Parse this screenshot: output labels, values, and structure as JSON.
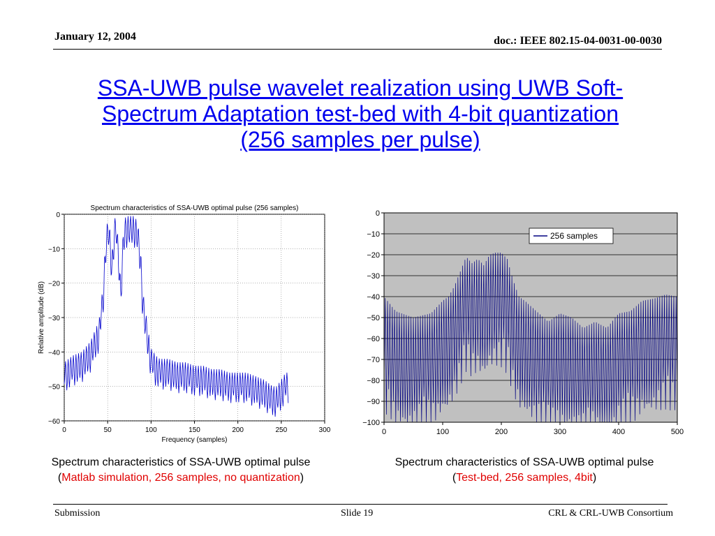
{
  "header": {
    "date": "January 12, 2004",
    "doc": "doc.: IEEE 802.15-04-0031-00-0030"
  },
  "slide": {
    "title_line1": "SSA-UWB pulse wavelet realization using UWB Soft-",
    "title_line2": "Spectrum Adaptation test-bed with 4-bit quantization",
    "title_line3": "(256 samples per pulse)",
    "title_color": "#0000ee"
  },
  "captions": {
    "left_line1": "Spectrum characteristics of SSA-UWB optimal pulse",
    "left_open": "(",
    "left_red": "Matlab simulation, 256 samples, no quantization",
    "left_close": ")",
    "right_line1": "Spectrum characteristics of SSA-UWB optimal pulse",
    "right_open": "(",
    "right_red": "Test-bed, 256 samples, 4bit",
    "right_close": ")",
    "highlight_color": "#e00000"
  },
  "footer": {
    "left": "Submission",
    "center": "Slide 19",
    "right": "CRL & CRL-UWB Consortium"
  },
  "chart_data": [
    {
      "type": "line",
      "title": "Spectrum characteristics of SSA-UWB optimal pulse (256 samples)",
      "xlabel": "Frequency (samples)",
      "ylabel": "Relative amplitude (dB)",
      "xlim": [
        0,
        300
      ],
      "ylim": [
        -60,
        0
      ],
      "xticks": [
        0,
        50,
        100,
        150,
        200,
        250,
        300
      ],
      "yticks": [
        0,
        -10,
        -20,
        -30,
        -40,
        -50,
        -60
      ],
      "grid": true,
      "line_color": "#0000cc",
      "series": [
        {
          "x": [
            0,
            5,
            10,
            20,
            30,
            40,
            45,
            48,
            50,
            52,
            55,
            58,
            60,
            63,
            65,
            68,
            70,
            73,
            75,
            78,
            80,
            82,
            85,
            88,
            90,
            93,
            95,
            98,
            100,
            103,
            105,
            110,
            120,
            130,
            140,
            150,
            160,
            170,
            180,
            190,
            200,
            210,
            220,
            230,
            240,
            245,
            250,
            255,
            258
          ],
          "y": [
            -43,
            -42,
            -41,
            -40,
            -37,
            -31,
            -20,
            -5,
            -2,
            -3,
            -12,
            -1,
            -1.5,
            -10,
            -20,
            -5,
            -1,
            -0.6,
            -0.5,
            -0.5,
            -0.5,
            -1,
            -3,
            -10,
            -20,
            -28,
            -30,
            -36,
            -39,
            -40,
            -41,
            -42,
            -42,
            -43,
            -43,
            -44,
            -44,
            -45,
            -45,
            -46,
            -46,
            -46,
            -47,
            -48,
            -50,
            -50,
            -48,
            -46,
            -46
          ]
        }
      ]
    },
    {
      "type": "line",
      "title": "",
      "xlabel": "",
      "ylabel": "",
      "xlim": [
        0,
        500
      ],
      "ylim": [
        -100,
        0
      ],
      "xticks": [
        0,
        100,
        200,
        300,
        400,
        500
      ],
      "yticks": [
        0,
        -10,
        -20,
        -30,
        -40,
        -50,
        -60,
        -70,
        -80,
        -90,
        -100
      ],
      "grid": true,
      "plot_background": "#c0c0c0",
      "line_color": "#000080",
      "legend_position": "top-right",
      "series": [
        {
          "name": "256 samples",
          "x": [
            0,
            20,
            50,
            80,
            100,
            110,
            120,
            130,
            140,
            150,
            160,
            170,
            180,
            190,
            200,
            210,
            220,
            230,
            240,
            260,
            280,
            300,
            320,
            340,
            360,
            380,
            400,
            420,
            440,
            460,
            480,
            500
          ],
          "y": [
            -40,
            -47,
            -50,
            -48,
            -42,
            -40,
            -35,
            -28,
            -21,
            -24,
            -22,
            -25,
            -20,
            -19,
            -19,
            -22,
            -32,
            -40,
            -42,
            -47,
            -52,
            -48,
            -50,
            -55,
            -52,
            -55,
            -48,
            -47,
            -42,
            -41,
            -39,
            -40
          ]
        }
      ]
    }
  ]
}
